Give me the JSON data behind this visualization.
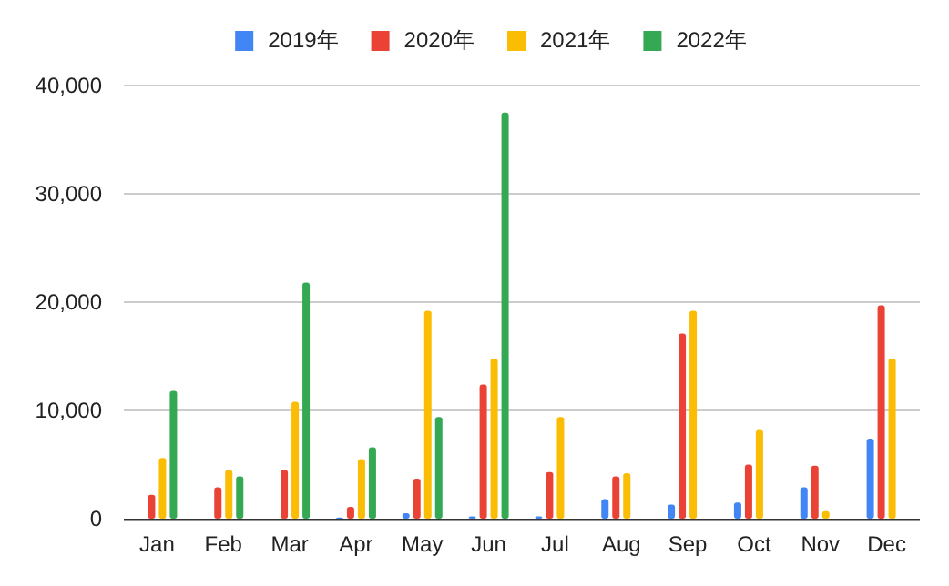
{
  "chart_data": {
    "type": "bar",
    "categories": [
      "Jan",
      "Feb",
      "Mar",
      "Apr",
      "May",
      "Jun",
      "Jul",
      "Aug",
      "Sep",
      "Oct",
      "Nov",
      "Dec"
    ],
    "series": [
      {
        "name": "2019年",
        "color": "#4285f4",
        "values": [
          null,
          null,
          null,
          100,
          500,
          200,
          200,
          1800,
          1300,
          1500,
          2900,
          7400
        ]
      },
      {
        "name": "2020年",
        "color": "#ea4335",
        "values": [
          2200,
          2900,
          4500,
          1100,
          3700,
          12400,
          4300,
          3900,
          17100,
          5000,
          4900,
          19700
        ]
      },
      {
        "name": "2021年",
        "color": "#fbbc04",
        "values": [
          5600,
          4500,
          10800,
          5500,
          19200,
          14800,
          9400,
          4200,
          19200,
          8200,
          700,
          14800
        ]
      },
      {
        "name": "2022年",
        "color": "#34a853",
        "values": [
          11800,
          3900,
          21800,
          6600,
          9400,
          37500,
          null,
          null,
          null,
          null,
          null,
          null
        ]
      }
    ],
    "ylim": [
      0,
      40000
    ],
    "yticks": [
      {
        "value": 0,
        "label": "0"
      },
      {
        "value": 10000,
        "label": "10,000"
      },
      {
        "value": 20000,
        "label": "20,000"
      },
      {
        "value": 30000,
        "label": "30,000"
      },
      {
        "value": 40000,
        "label": "40,000"
      }
    ],
    "grid": true,
    "legend": "top"
  }
}
